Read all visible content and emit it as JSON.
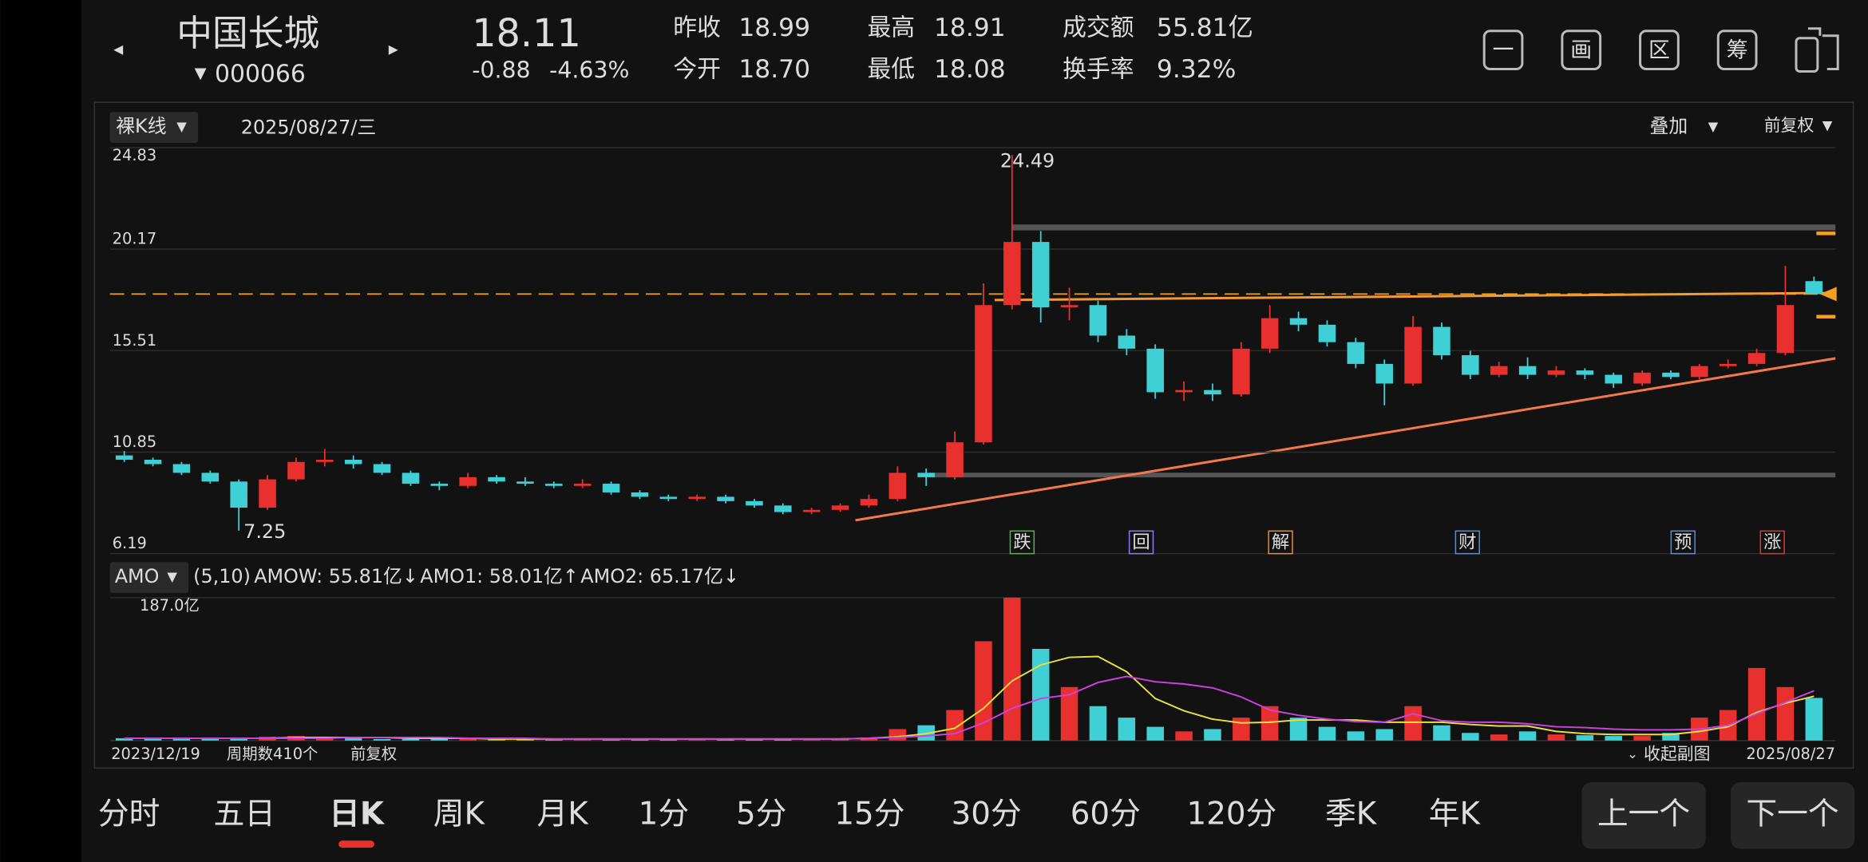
{
  "header": {
    "name": "中国长城",
    "code": "000066",
    "price": "18.11",
    "change": "-0.88",
    "change_pct": "-4.63%",
    "quotes": [
      {
        "label": "昨收",
        "value": "18.99"
      },
      {
        "label": "今开",
        "value": "18.70"
      },
      {
        "label": "最高",
        "value": "18.91"
      },
      {
        "label": "最低",
        "value": "18.08"
      },
      {
        "label": "成交额",
        "value": "55.81亿"
      },
      {
        "label": "换手率",
        "value": "9.32%"
      }
    ],
    "tools": [
      "一",
      "画",
      "区",
      "筹"
    ]
  },
  "toolbar": {
    "mode": "裸K线",
    "date": "2025/08/27/三",
    "overlay": "叠加",
    "adjust": "前复权"
  },
  "chart_data": [
    {
      "type": "candlestick",
      "ylim": [
        6.19,
        24.83
      ],
      "yticks": [
        24.83,
        20.17,
        15.51,
        10.85,
        6.19
      ],
      "grid": true,
      "up_color": "#e8312f",
      "down_color": "#3fd0d6",
      "annotations": [
        {
          "text": "24.49",
          "index": 31
        },
        {
          "text": "7.25",
          "index": 4
        }
      ],
      "events": [
        {
          "label": "跌",
          "color": "#3cc04a"
        },
        {
          "label": "回",
          "color": "#8a7cf0"
        },
        {
          "label": "解",
          "color": "#f08a2a"
        },
        {
          "label": "财",
          "color": "#4f8df0"
        },
        {
          "label": "预",
          "color": "#4f8df0"
        },
        {
          "label": "涨",
          "color": "#e8312f"
        }
      ],
      "open": [
        10.7,
        10.5,
        10.3,
        9.9,
        9.5,
        8.3,
        9.6,
        10.4,
        10.5,
        10.3,
        9.9,
        9.4,
        9.3,
        9.7,
        9.5,
        9.4,
        9.3,
        9.4,
        9.0,
        8.8,
        8.7,
        8.8,
        8.6,
        8.4,
        8.1,
        8.2,
        8.4,
        8.7,
        9.9,
        9.7,
        11.3,
        17.6,
        20.5,
        17.5,
        17.6,
        16.2,
        15.6,
        13.6,
        13.7,
        13.5,
        15.6,
        17.0,
        16.7,
        15.9,
        14.9,
        14.0,
        16.6,
        15.3,
        14.4,
        14.8,
        14.4,
        14.6,
        14.4,
        14.0,
        14.5,
        14.3,
        14.8,
        14.9,
        15.4,
        18.7
      ],
      "high": [
        10.9,
        10.6,
        10.4,
        10.0,
        9.6,
        9.8,
        10.6,
        11.0,
        10.7,
        10.4,
        10.0,
        9.5,
        9.9,
        9.8,
        9.7,
        9.5,
        9.6,
        9.5,
        9.1,
        8.9,
        8.9,
        8.9,
        8.7,
        8.5,
        8.3,
        8.5,
        8.9,
        10.2,
        10.1,
        11.8,
        18.6,
        24.49,
        21.0,
        18.4,
        17.8,
        16.5,
        15.8,
        14.1,
        14.0,
        15.9,
        17.6,
        17.3,
        16.9,
        16.1,
        15.1,
        17.1,
        16.8,
        15.5,
        15.0,
        15.2,
        14.8,
        14.7,
        14.5,
        14.6,
        14.6,
        14.9,
        15.1,
        15.6,
        19.4,
        18.91
      ],
      "low": [
        10.4,
        10.2,
        9.8,
        9.4,
        7.25,
        8.2,
        9.5,
        10.2,
        10.1,
        9.8,
        9.3,
        9.1,
        9.2,
        9.4,
        9.3,
        9.2,
        9.2,
        8.9,
        8.7,
        8.6,
        8.6,
        8.5,
        8.3,
        8.0,
        8.0,
        8.1,
        8.3,
        8.6,
        9.3,
        9.6,
        11.2,
        17.4,
        16.8,
        16.9,
        15.9,
        15.3,
        13.3,
        13.2,
        13.2,
        13.4,
        15.4,
        16.4,
        15.7,
        14.7,
        13.0,
        13.9,
        15.1,
        14.2,
        14.3,
        14.2,
        14.3,
        14.2,
        13.8,
        13.9,
        14.2,
        14.2,
        14.7,
        14.8,
        15.3,
        18.08
      ],
      "close": [
        10.5,
        10.3,
        9.9,
        9.5,
        8.3,
        9.6,
        10.4,
        10.5,
        10.3,
        9.9,
        9.4,
        9.3,
        9.7,
        9.5,
        9.4,
        9.3,
        9.4,
        9.0,
        8.8,
        8.7,
        8.8,
        8.6,
        8.4,
        8.1,
        8.2,
        8.4,
        8.7,
        9.9,
        9.7,
        11.3,
        17.6,
        20.5,
        17.5,
        17.6,
        16.2,
        15.6,
        13.6,
        13.7,
        13.5,
        15.6,
        17.0,
        16.7,
        15.9,
        14.9,
        14.0,
        16.6,
        15.3,
        14.4,
        14.8,
        14.4,
        14.6,
        14.4,
        14.0,
        14.5,
        14.3,
        14.8,
        14.9,
        15.4,
        17.6,
        18.11
      ]
    },
    {
      "type": "bar",
      "indicator": "AMO",
      "params": "(5,10)",
      "ylim": [
        0,
        187
      ],
      "yticks": [
        {
          "value": 187,
          "label": "187.0亿"
        }
      ],
      "legend": [
        {
          "text": "AMOW: 55.81亿",
          "arrow": "↓",
          "color": "#ffffff",
          "arrow_color": "#3cc04a"
        },
        {
          "text": "AMO1: 58.01亿",
          "arrow": "↑",
          "color": "#e8e040",
          "arrow_color": "#e8312f"
        },
        {
          "text": "AMO2: 65.17亿",
          "arrow": "↓",
          "color": "#d040e0",
          "arrow_color": "#3cc04a"
        }
      ],
      "values": [
        3,
        3,
        2,
        2,
        4,
        5,
        6,
        4,
        3,
        2,
        2,
        3,
        3,
        2,
        2,
        2,
        3,
        2,
        2,
        2,
        2,
        2,
        2,
        2,
        2,
        3,
        4,
        15,
        20,
        40,
        130,
        187,
        120,
        70,
        45,
        30,
        18,
        12,
        15,
        30,
        45,
        30,
        18,
        12,
        15,
        45,
        20,
        10,
        8,
        12,
        8,
        7,
        6,
        6,
        10,
        30,
        40,
        95,
        70,
        55.81
      ],
      "series": [
        {
          "name": "AMO1",
          "color": "#e8e040",
          "values": [
            3,
            3,
            3,
            3,
            3,
            3,
            4,
            4,
            4,
            4,
            3,
            3,
            3,
            2,
            2,
            2,
            2,
            2,
            2,
            2,
            2,
            2,
            2,
            2,
            2,
            2,
            3,
            5,
            9,
            16,
            42,
            78,
            99,
            109,
            110,
            90,
            55,
            39,
            28,
            23,
            24,
            27,
            27,
            27,
            24,
            24,
            24,
            21,
            19,
            19,
            12,
            9,
            8,
            8,
            8,
            12,
            18,
            37,
            49,
            58.01
          ]
        },
        {
          "name": "AMO2",
          "color": "#d040e0",
          "values": [
            3,
            3,
            3,
            3,
            3,
            3,
            3,
            3,
            4,
            4,
            4,
            4,
            3,
            3,
            3,
            2,
            2,
            2,
            2,
            2,
            2,
            2,
            2,
            2,
            2,
            2,
            3,
            4,
            6,
            9,
            23,
            42,
            55,
            60,
            76,
            84,
            77,
            74,
            69,
            57,
            40,
            33,
            28,
            25,
            24,
            35,
            26,
            24,
            24,
            22,
            18,
            17,
            15,
            14,
            14,
            15,
            20,
            35,
            50,
            65.17
          ]
        }
      ]
    }
  ],
  "axis_footer": {
    "start": "2023/12/19",
    "count": "周期数410个",
    "adjust": "前复权",
    "collapse": "收起副图",
    "end": "2025/08/27"
  },
  "tabs": [
    "分时",
    "五日",
    "日K",
    "周K",
    "月K",
    "1分",
    "5分",
    "15分",
    "30分",
    "60分",
    "120分",
    "季K",
    "年K"
  ],
  "active_tab": 2,
  "buttons": [
    "上一个",
    "下一个"
  ]
}
